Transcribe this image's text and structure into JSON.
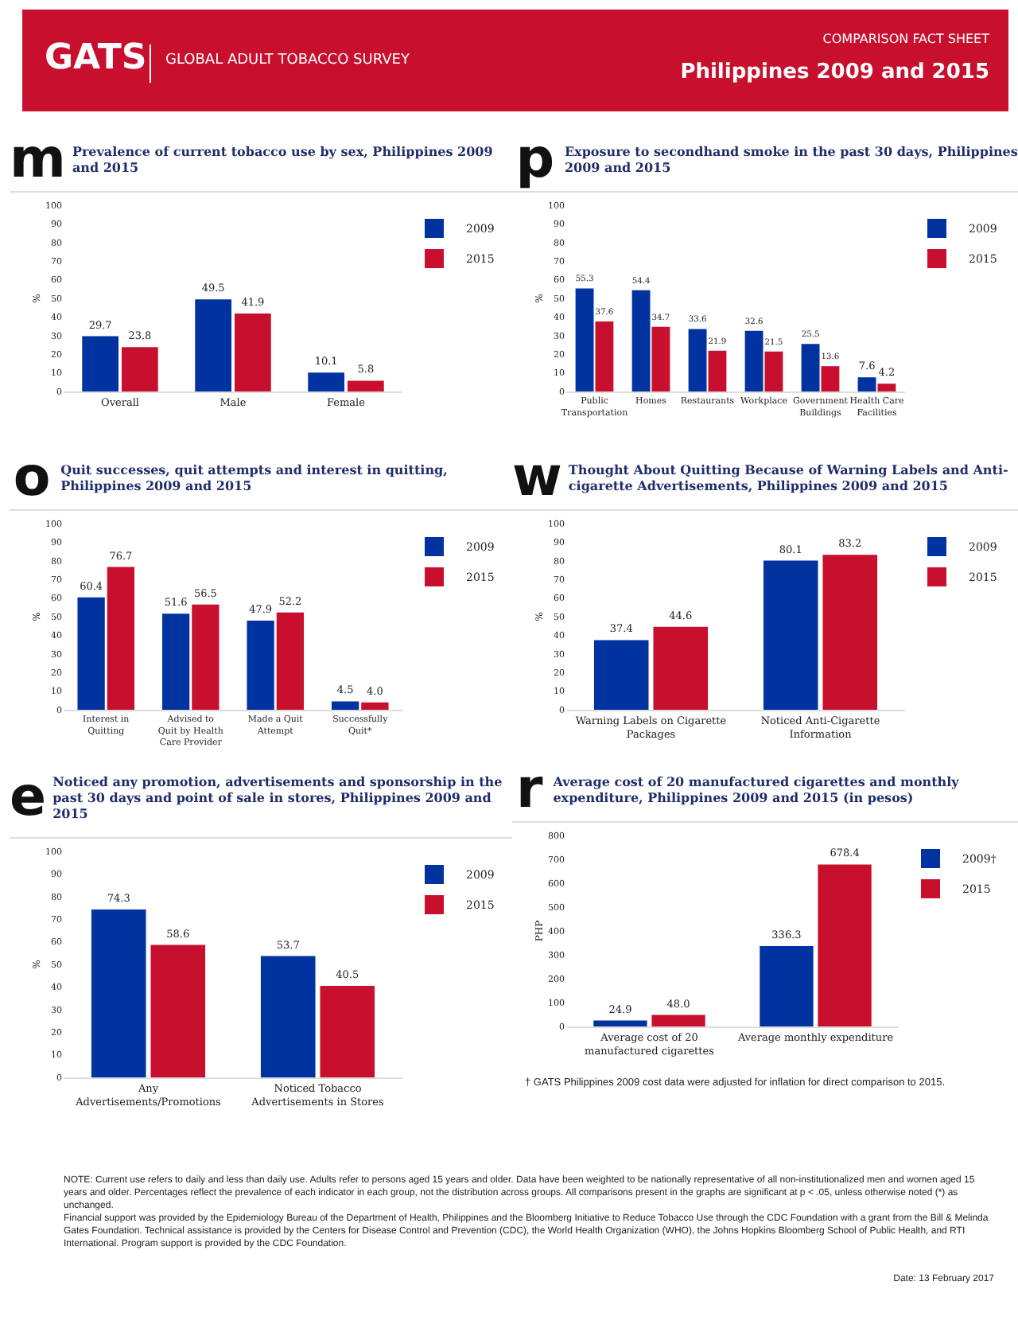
{
  "chart_data": [
    {
      "type": "bar",
      "title": "Prevalence of current tobacco use by sex, Philippines 2009 and 2015",
      "ylabel": "%",
      "annotations": [
        "m",
        "GATS",
        "GLOBAL ADULT TOBACCO SURVEY",
        "COMPARISON FACT SHEET",
        "Philippines 2009 and 2015"
      ],
      "categories": [
        "Overall",
        "Male",
        "Female"
      ],
      "series": [
        {
          "name": "2009",
          "color": "#0033a0",
          "values": [
            29.7,
            49.5,
            10.1
          ]
        },
        {
          "name": "2015",
          "color": "#c8102e",
          "values": [
            23.8,
            41.9,
            5.8
          ]
        }
      ],
      "ylim": [
        0,
        100
      ],
      "yticks": [
        0,
        10,
        20,
        30,
        40,
        50,
        60,
        70,
        80,
        90,
        100
      ],
      "data_labels": true,
      "legend": "top right"
    },
    {
      "type": "bar",
      "title": "Exposure to secondhand smoke in the past 30 days, Philippines 2009 and 2015",
      "ylabel": "%",
      "annotations": [
        "p"
      ],
      "categories": [
        "Public Transportation",
        "Homes",
        "Restaurants",
        "Workplace",
        "Government Buildings",
        "Health Care Facilities"
      ],
      "series": [
        {
          "name": "2009",
          "color": "#0033a0",
          "values": [
            55.3,
            54.4,
            33.6,
            32.6,
            25.5,
            7.6
          ]
        },
        {
          "name": "2015",
          "color": "#c8102e",
          "values": [
            37.6,
            34.7,
            21.9,
            21.5,
            13.6,
            4.2
          ]
        }
      ],
      "ylim": [
        0,
        100
      ],
      "yticks": [
        0,
        10,
        20,
        30,
        40,
        50,
        60,
        70,
        80,
        90,
        100
      ],
      "data_labels": true,
      "legend": "top right"
    },
    {
      "type": "bar",
      "title": "Quit successes, quit attempts and interest in quitting, Philippines 2009 and 2015",
      "ylabel": "%",
      "annotations": [
        "o"
      ],
      "categories": [
        "Interest in Quitting",
        "Advised to Quit by Health Care Provider",
        "Made a Quit Attempt",
        "Successfully Quit*"
      ],
      "series": [
        {
          "name": "2009",
          "color": "#0033a0",
          "values": [
            60.4,
            51.6,
            47.9,
            4.5
          ]
        },
        {
          "name": "2015",
          "color": "#c8102e",
          "values": [
            76.7,
            56.5,
            52.2,
            4.0
          ],
          "value_labels": [
            "76.7",
            "56.5",
            "52.2",
            "4.0"
          ]
        }
      ],
      "ylim": [
        0,
        100
      ],
      "yticks": [
        0,
        10,
        20,
        30,
        40,
        50,
        60,
        70,
        80,
        90,
        100
      ],
      "data_labels": true,
      "legend": "top right"
    },
    {
      "type": "bar",
      "title": "Thought About Quitting Because of Warning Labels and Anti-cigarette Advertisements, Philippines 2009 and 2015",
      "ylabel": "%",
      "annotations": [
        "w"
      ],
      "categories": [
        "Warning Labels on Cigarette Packages",
        "Noticed Anti-Cigarette Information"
      ],
      "series": [
        {
          "name": "2009",
          "color": "#0033a0",
          "values": [
            37.4,
            80.1
          ]
        },
        {
          "name": "2015",
          "color": "#c8102e",
          "values": [
            44.6,
            83.2
          ]
        }
      ],
      "ylim": [
        0,
        100
      ],
      "yticks": [
        0,
        10,
        20,
        30,
        40,
        50,
        60,
        70,
        80,
        90,
        100
      ],
      "data_labels": true,
      "legend": "top right"
    },
    {
      "type": "bar",
      "title": "Noticed any promotion, advertisements and sponsorship in the past 30 days and point of sale in stores, Philippines 2009 and 2015",
      "ylabel": "%",
      "annotations": [
        "e"
      ],
      "categories": [
        "Any Advertisements/Promotions",
        "Noticed Tobacco Advertisements in Stores"
      ],
      "series": [
        {
          "name": "2009",
          "color": "#0033a0",
          "values": [
            74.3,
            53.7
          ]
        },
        {
          "name": "2015",
          "color": "#c8102e",
          "values": [
            58.6,
            40.5
          ]
        }
      ],
      "ylim": [
        0,
        100
      ],
      "yticks": [
        0,
        10,
        20,
        30,
        40,
        50,
        60,
        70,
        80,
        90,
        100
      ],
      "data_labels": true,
      "legend": "top right"
    },
    {
      "type": "bar",
      "title": "Average cost of 20 manufactured cigarettes and monthly expenditure, Philippines 2009 and 2015 (in pesos)",
      "ylabel": "PHP",
      "annotations": [
        "r",
        "† GATS Philippines 2009 cost data were adjusted for inflation for direct comparison to 2015.",
        "NOTE: Current use refers to daily and less than daily use. Adults refer to persons aged 15 years and older. Data have been weighted to be nationally representative of all non-institutionalized men and women aged 15 years and older. Percentages reflect the prevalence of each indicator in each group, not the distribution across groups. All comparisons present in the graphs are significant at p < .05, unless otherwise noted (*) as unchanged.",
        "Financial support was provided by the Epidemiology Bureau of the Department of Health, Philippines and the Bloomberg Initiative to Reduce Tobacco Use through the CDC Foundation with a grant from the Bill & Melinda Gates Foundation. Technical assistance is provided by the Centers for Disease Control and Prevention (CDC), the World Health Organization (WHO), the Johns Hopkins Bloomberg School of Public Health, and RTI International. Program support is provided by the CDC Foundation.",
        "Date: 13 February 2017"
      ],
      "categories": [
        "Average cost of 20 manufactured cigarettes",
        "Average monthly expenditure"
      ],
      "series": [
        {
          "name": "2009†",
          "color": "#0033a0",
          "values": [
            24.9,
            336.3
          ]
        },
        {
          "name": "2015",
          "color": "#c8102e",
          "values": [
            48.0,
            678.4
          ],
          "value_labels": [
            "48.0",
            "678.4"
          ]
        }
      ],
      "ylim": [
        0,
        800
      ],
      "yticks": [
        0,
        100,
        200,
        300,
        400,
        500,
        600,
        700,
        800
      ],
      "data_labels": true,
      "legend": "top right"
    }
  ]
}
